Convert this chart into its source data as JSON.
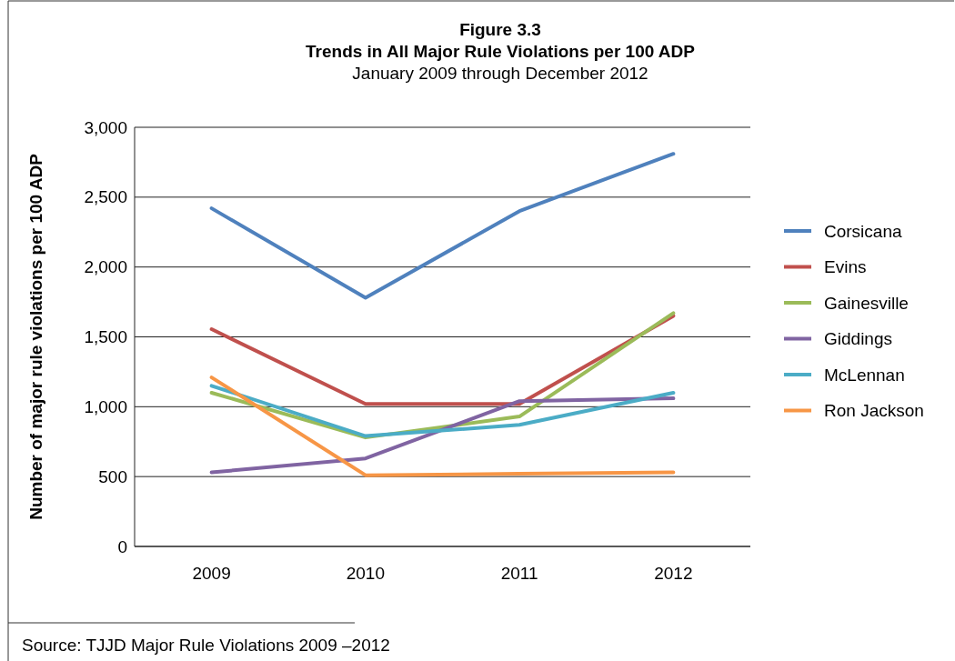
{
  "chart_data": {
    "type": "line",
    "title": "Figure 3.3\nTrends in All Major Rule Violations per 100 ADP",
    "subtitle": "January 2009 through December 2012",
    "ylabel": "Number of major rule violations per 100 ADP",
    "categories": [
      "2009",
      "2010",
      "2011",
      "2012"
    ],
    "series": [
      {
        "name": "Corsicana",
        "color": "#4f81bd",
        "values": [
          2420,
          1780,
          2400,
          2810
        ]
      },
      {
        "name": "Evins",
        "color": "#c0504d",
        "values": [
          1555,
          1020,
          1020,
          1650
        ]
      },
      {
        "name": "Gainesville",
        "color": "#9bbb59",
        "values": [
          1100,
          780,
          930,
          1670
        ]
      },
      {
        "name": "Giddings",
        "color": "#8064a2",
        "values": [
          530,
          630,
          1040,
          1060
        ]
      },
      {
        "name": "McLennan",
        "color": "#4bacc6",
        "values": [
          1150,
          790,
          870,
          1100
        ]
      },
      {
        "name": "Ron Jackson",
        "color": "#f79646",
        "values": [
          1210,
          510,
          520,
          530
        ]
      }
    ],
    "ylim": [
      0,
      3000
    ],
    "yticks": [
      0,
      {
        "value": 500,
        "label": "500"
      },
      {
        "value": 1000,
        "label": "1,000"
      },
      {
        "value": 1500,
        "label": "1,500"
      },
      {
        "value": 2000,
        "label": "2,000"
      },
      {
        "value": 2500,
        "label": "2,500"
      },
      {
        "value": 3000,
        "label": "3,000"
      }
    ],
    "grid": "y",
    "legend": "right",
    "marker": "none",
    "line_style": "solid",
    "annotations": [
      "Source: TJJD Major Rule Violations 2009 –2012"
    ]
  }
}
